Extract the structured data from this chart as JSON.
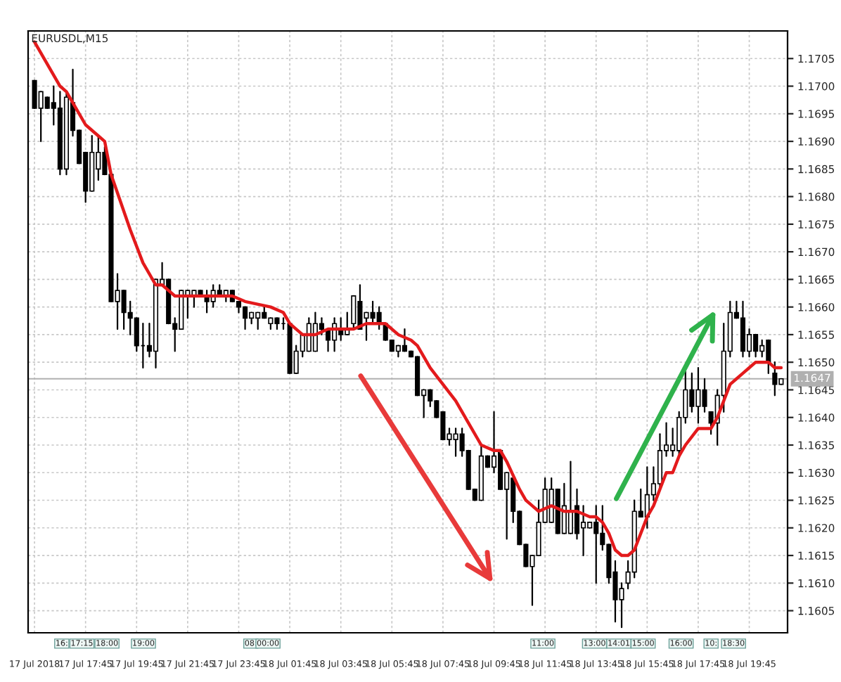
{
  "chart_data": {
    "type": "candlestick",
    "title": "EURUSDL,M15",
    "x": [
      "2018-07-17T15:45",
      "2018-07-17T16:00",
      "2018-07-17T16:15",
      "2018-07-17T16:30",
      "2018-07-17T16:45",
      "2018-07-17T17:00",
      "2018-07-17T17:15",
      "2018-07-17T17:30",
      "2018-07-17T17:45",
      "2018-07-17T18:00",
      "2018-07-17T18:15",
      "2018-07-17T18:30",
      "2018-07-17T18:45",
      "2018-07-17T19:00",
      "2018-07-17T19:15",
      "2018-07-17T19:30",
      "2018-07-17T19:45",
      "2018-07-17T20:00",
      "2018-07-17T20:15",
      "2018-07-17T20:30",
      "2018-07-17T20:45",
      "2018-07-17T21:00",
      "2018-07-17T21:15",
      "2018-07-17T21:30",
      "2018-07-17T21:45",
      "2018-07-17T22:00",
      "2018-07-17T22:15",
      "2018-07-17T22:30",
      "2018-07-17T22:45",
      "2018-07-17T23:00",
      "2018-07-17T23:15",
      "2018-07-17T23:30",
      "2018-07-17T23:45",
      "2018-07-18T00:00",
      "2018-07-18T00:15",
      "2018-07-18T00:30",
      "2018-07-18T00:45",
      "2018-07-18T01:00",
      "2018-07-18T01:15",
      "2018-07-18T01:30",
      "2018-07-18T01:45",
      "2018-07-18T02:00",
      "2018-07-18T02:15",
      "2018-07-18T02:30",
      "2018-07-18T02:45",
      "2018-07-18T03:00",
      "2018-07-18T03:15",
      "2018-07-18T03:30",
      "2018-07-18T03:45",
      "2018-07-18T04:00",
      "2018-07-18T04:15",
      "2018-07-18T04:30",
      "2018-07-18T04:45",
      "2018-07-18T05:00",
      "2018-07-18T05:15",
      "2018-07-18T05:30",
      "2018-07-18T05:45",
      "2018-07-18T06:00",
      "2018-07-18T06:15",
      "2018-07-18T06:30",
      "2018-07-18T06:45",
      "2018-07-18T07:00",
      "2018-07-18T07:15",
      "2018-07-18T07:30",
      "2018-07-18T07:45",
      "2018-07-18T08:00",
      "2018-07-18T08:15",
      "2018-07-18T08:30",
      "2018-07-18T08:45",
      "2018-07-18T09:00",
      "2018-07-18T09:15",
      "2018-07-18T09:30",
      "2018-07-18T09:45",
      "2018-07-18T10:00",
      "2018-07-18T10:15",
      "2018-07-18T10:30",
      "2018-07-18T10:45",
      "2018-07-18T11:00",
      "2018-07-18T11:15",
      "2018-07-18T11:30",
      "2018-07-18T11:45",
      "2018-07-18T12:00",
      "2018-07-18T12:15",
      "2018-07-18T12:30",
      "2018-07-18T12:45",
      "2018-07-18T13:00",
      "2018-07-18T13:15",
      "2018-07-18T13:30",
      "2018-07-18T13:45",
      "2018-07-18T14:00",
      "2018-07-18T14:15",
      "2018-07-18T14:30",
      "2018-07-18T14:45",
      "2018-07-18T15:00",
      "2018-07-18T15:15",
      "2018-07-18T15:30",
      "2018-07-18T15:45",
      "2018-07-18T16:00",
      "2018-07-18T16:15",
      "2018-07-18T16:30",
      "2018-07-18T16:45",
      "2018-07-18T17:00",
      "2018-07-18T17:15",
      "2018-07-18T17:30",
      "2018-07-18T17:45",
      "2018-07-18T18:00",
      "2018-07-18T18:15",
      "2018-07-18T18:30",
      "2018-07-18T18:45",
      "2018-07-18T19:00",
      "2018-07-18T19:15",
      "2018-07-18T19:30",
      "2018-07-18T19:45",
      "2018-07-18T20:00",
      "2018-07-18T20:15",
      "2018-07-18T20:30",
      "2018-07-18T20:45",
      "2018-07-18T21:00"
    ],
    "ohlc": [
      [
        1.1701,
        1.1701,
        1.1696,
        1.1696
      ],
      [
        1.1696,
        1.1699,
        1.169,
        1.1699
      ],
      [
        1.1698,
        1.1698,
        1.1696,
        1.1696
      ],
      [
        1.1697,
        1.17,
        1.1693,
        1.1696
      ],
      [
        1.1696,
        1.1699,
        1.1684,
        1.1685
      ],
      [
        1.1685,
        1.1699,
        1.1684,
        1.1698
      ],
      [
        1.1697,
        1.1703,
        1.1691,
        1.1692
      ],
      [
        1.1692,
        1.1692,
        1.1686,
        1.1686
      ],
      [
        1.1688,
        1.1688,
        1.1679,
        1.1681
      ],
      [
        1.1681,
        1.1691,
        1.1681,
        1.1688
      ],
      [
        1.1685,
        1.1691,
        1.1683,
        1.1688
      ],
      [
        1.1688,
        1.1689,
        1.1684,
        1.1684
      ],
      [
        1.1684,
        1.1684,
        1.1661,
        1.1661
      ],
      [
        1.1661,
        1.1666,
        1.1656,
        1.1663
      ],
      [
        1.1663,
        1.1663,
        1.1656,
        1.1659
      ],
      [
        1.1659,
        1.1661,
        1.1655,
        1.1658
      ],
      [
        1.1658,
        1.1658,
        1.1652,
        1.1653
      ],
      [
        1.1653,
        1.1657,
        1.1649,
        1.1653
      ],
      [
        1.1653,
        1.1657,
        1.1651,
        1.1652
      ],
      [
        1.1652,
        1.1665,
        1.1649,
        1.1665
      ],
      [
        1.1664,
        1.1668,
        1.1664,
        1.1665
      ],
      [
        1.1665,
        1.1665,
        1.1657,
        1.1657
      ],
      [
        1.1657,
        1.1658,
        1.1652,
        1.1656
      ],
      [
        1.1656,
        1.1663,
        1.1656,
        1.1663
      ],
      [
        1.1662,
        1.1663,
        1.1658,
        1.1663
      ],
      [
        1.1662,
        1.1663,
        1.166,
        1.1663
      ],
      [
        1.1663,
        1.1663,
        1.1662,
        1.1662
      ],
      [
        1.1662,
        1.1663,
        1.1659,
        1.1661
      ],
      [
        1.1661,
        1.1664,
        1.166,
        1.1663
      ],
      [
        1.1663,
        1.1664,
        1.1662,
        1.1662
      ],
      [
        1.1662,
        1.1663,
        1.1661,
        1.1663
      ],
      [
        1.1663,
        1.1663,
        1.1661,
        1.1661
      ],
      [
        1.1661,
        1.1661,
        1.1659,
        1.166
      ],
      [
        1.166,
        1.166,
        1.1656,
        1.1658
      ],
      [
        1.1658,
        1.1659,
        1.1657,
        1.1659
      ],
      [
        1.1658,
        1.1659,
        1.1656,
        1.1659
      ],
      [
        1.1659,
        1.166,
        1.1658,
        1.1658
      ],
      [
        1.1657,
        1.1658,
        1.1656,
        1.1658
      ],
      [
        1.1658,
        1.1658,
        1.1656,
        1.1657
      ],
      [
        1.1657,
        1.1658,
        1.1656,
        1.1657
      ],
      [
        1.1657,
        1.1657,
        1.1648,
        1.1648
      ],
      [
        1.1648,
        1.1653,
        1.1648,
        1.1652
      ],
      [
        1.1652,
        1.1655,
        1.1651,
        1.1655
      ],
      [
        1.1652,
        1.1658,
        1.1652,
        1.1657
      ],
      [
        1.1652,
        1.1659,
        1.1652,
        1.1657
      ],
      [
        1.1657,
        1.1658,
        1.1655,
        1.1656
      ],
      [
        1.1656,
        1.1656,
        1.1652,
        1.1654
      ],
      [
        1.1654,
        1.1658,
        1.1652,
        1.1657
      ],
      [
        1.1656,
        1.1658,
        1.1654,
        1.1655
      ],
      [
        1.1655,
        1.1659,
        1.1655,
        1.1656
      ],
      [
        1.1657,
        1.1662,
        1.1656,
        1.1662
      ],
      [
        1.1661,
        1.1664,
        1.1656,
        1.1656
      ],
      [
        1.1658,
        1.1659,
        1.1654,
        1.1659
      ],
      [
        1.1659,
        1.1661,
        1.1657,
        1.1658
      ],
      [
        1.1659,
        1.166,
        1.1656,
        1.1657
      ],
      [
        1.1657,
        1.1657,
        1.1654,
        1.1654
      ],
      [
        1.1654,
        1.1654,
        1.1652,
        1.1652
      ],
      [
        1.1652,
        1.1653,
        1.1651,
        1.1653
      ],
      [
        1.1653,
        1.1656,
        1.1652,
        1.1652
      ],
      [
        1.1652,
        1.1652,
        1.1651,
        1.1651
      ],
      [
        1.1651,
        1.1651,
        1.1644,
        1.1644
      ],
      [
        1.1644,
        1.1645,
        1.164,
        1.1645
      ],
      [
        1.1645,
        1.1645,
        1.1642,
        1.1643
      ],
      [
        1.1643,
        1.1643,
        1.164,
        1.164
      ],
      [
        1.1641,
        1.1641,
        1.1636,
        1.1636
      ],
      [
        1.1636,
        1.1638,
        1.1635,
        1.1637
      ],
      [
        1.1636,
        1.1638,
        1.1633,
        1.1637
      ],
      [
        1.1637,
        1.1638,
        1.1633,
        1.1634
      ],
      [
        1.1634,
        1.1634,
        1.1627,
        1.1627
      ],
      [
        1.1627,
        1.1627,
        1.1625,
        1.1625
      ],
      [
        1.1625,
        1.1635,
        1.1625,
        1.1633
      ],
      [
        1.1633,
        1.1633,
        1.1631,
        1.1631
      ],
      [
        1.1631,
        1.1641,
        1.163,
        1.1633
      ],
      [
        1.1634,
        1.1634,
        1.1627,
        1.1627
      ],
      [
        1.1627,
        1.163,
        1.1618,
        1.163
      ],
      [
        1.1629,
        1.1629,
        1.1621,
        1.1623
      ],
      [
        1.1623,
        1.1623,
        1.1617,
        1.1617
      ],
      [
        1.1617,
        1.1617,
        1.1613,
        1.1613
      ],
      [
        1.1613,
        1.1615,
        1.1606,
        1.1615
      ],
      [
        1.1615,
        1.1625,
        1.1615,
        1.1621
      ],
      [
        1.1621,
        1.1629,
        1.1621,
        1.1627
      ],
      [
        1.1621,
        1.1629,
        1.1621,
        1.1627
      ],
      [
        1.1627,
        1.1627,
        1.1619,
        1.1619
      ],
      [
        1.1619,
        1.1628,
        1.1619,
        1.1624
      ],
      [
        1.1619,
        1.1632,
        1.1619,
        1.1623
      ],
      [
        1.1624,
        1.1627,
        1.1618,
        1.1619
      ],
      [
        1.162,
        1.1624,
        1.1615,
        1.1621
      ],
      [
        1.162,
        1.1621,
        1.162,
        1.1621
      ],
      [
        1.1621,
        1.1624,
        1.161,
        1.1619
      ],
      [
        1.1619,
        1.1624,
        1.1616,
        1.1617
      ],
      [
        1.1617,
        1.1617,
        1.161,
        1.1611
      ],
      [
        1.1612,
        1.1614,
        1.1603,
        1.1607
      ],
      [
        1.1607,
        1.161,
        1.1602,
        1.1609
      ],
      [
        1.161,
        1.1614,
        1.1609,
        1.1612
      ],
      [
        1.1612,
        1.1625,
        1.1611,
        1.1623
      ],
      [
        1.1623,
        1.1627,
        1.1622,
        1.1622
      ],
      [
        1.1622,
        1.1631,
        1.162,
        1.1626
      ],
      [
        1.1626,
        1.1631,
        1.1625,
        1.1628
      ],
      [
        1.1628,
        1.1637,
        1.1627,
        1.1634
      ],
      [
        1.1634,
        1.1639,
        1.1633,
        1.1635
      ],
      [
        1.1634,
        1.1638,
        1.1633,
        1.1635
      ],
      [
        1.1634,
        1.1641,
        1.1633,
        1.164
      ],
      [
        1.164,
        1.1649,
        1.1639,
        1.1645
      ],
      [
        1.1645,
        1.1648,
        1.1641,
        1.1642
      ],
      [
        1.1642,
        1.1649,
        1.1639,
        1.1645
      ],
      [
        1.1645,
        1.1647,
        1.1641,
        1.1642
      ],
      [
        1.1641,
        1.1641,
        1.1637,
        1.1639
      ],
      [
        1.1639,
        1.1645,
        1.1635,
        1.1644
      ],
      [
        1.1644,
        1.1657,
        1.1641,
        1.1652
      ],
      [
        1.1652,
        1.1661,
        1.1651,
        1.1659
      ],
      [
        1.1659,
        1.1661,
        1.1658,
        1.1658
      ],
      [
        1.1658,
        1.1661,
        1.1651,
        1.1652
      ],
      [
        1.1652,
        1.1656,
        1.1651,
        1.1655
      ],
      [
        1.1655,
        1.1655,
        1.1651,
        1.1652
      ],
      [
        1.1652,
        1.1654,
        1.1651,
        1.1653
      ],
      [
        1.1654,
        1.1654,
        1.1648,
        1.165
      ],
      [
        1.1648,
        1.165,
        1.1644,
        1.1646
      ],
      [
        1.1646,
        1.1647,
        1.1646,
        1.1647
      ]
    ],
    "series": [
      {
        "type": "line",
        "color": "#e31a1c",
        "x": [
          "2018-07-17T15:45",
          "2018-07-17T16:45",
          "2018-07-17T17:00",
          "2018-07-17T17:15",
          "2018-07-17T17:45",
          "2018-07-17T18:15",
          "2018-07-17T18:30",
          "2018-07-17T18:45",
          "2018-07-17T19:30",
          "2018-07-17T20:00",
          "2018-07-17T20:30",
          "2018-07-17T20:45",
          "2018-07-17T21:00",
          "2018-07-17T21:15",
          "2018-07-17T21:30",
          "2018-07-17T23:00",
          "2018-07-17T23:30",
          "2018-07-18T00:00",
          "2018-07-18T01:00",
          "2018-07-18T01:30",
          "2018-07-18T01:45",
          "2018-07-18T02:00",
          "2018-07-18T02:15",
          "2018-07-18T02:45",
          "2018-07-18T03:15",
          "2018-07-18T03:45",
          "2018-07-18T04:15",
          "2018-07-18T04:45",
          "2018-07-18T05:15",
          "2018-07-18T05:30",
          "2018-07-18T06:00",
          "2018-07-18T06:30",
          "2018-07-18T06:45",
          "2018-07-18T07:15",
          "2018-07-18T07:45",
          "2018-07-18T08:15",
          "2018-07-18T08:45",
          "2018-07-18T09:15",
          "2018-07-18T09:45",
          "2018-07-18T10:00",
          "2018-07-18T10:15",
          "2018-07-18T10:45",
          "2018-07-18T11:00",
          "2018-07-18T11:15",
          "2018-07-18T11:30",
          "2018-07-18T12:00",
          "2018-07-18T12:30",
          "2018-07-18T13:00",
          "2018-07-18T13:30",
          "2018-07-18T13:45",
          "2018-07-18T14:00",
          "2018-07-18T14:15",
          "2018-07-18T14:30",
          "2018-07-18T14:45",
          "2018-07-18T15:00",
          "2018-07-18T15:15",
          "2018-07-18T15:30",
          "2018-07-18T15:45",
          "2018-07-18T16:00",
          "2018-07-18T16:30",
          "2018-07-18T16:45",
          "2018-07-18T17:00",
          "2018-07-18T17:15",
          "2018-07-18T17:45",
          "2018-07-18T18:00",
          "2018-07-18T18:15",
          "2018-07-18T18:30",
          "2018-07-18T18:45",
          "2018-07-18T19:00",
          "2018-07-18T19:15",
          "2018-07-18T19:30",
          "2018-07-18T19:45",
          "2018-07-18T20:00",
          "2018-07-18T20:15",
          "2018-07-18T20:30",
          "2018-07-18T20:45",
          "2018-07-18T21:00"
        ],
        "values": [
          1.1708,
          1.17,
          1.1699,
          1.1697,
          1.1693,
          1.1691,
          1.169,
          1.1684,
          1.1674,
          1.1668,
          1.1664,
          1.1664,
          1.1663,
          1.1662,
          1.1662,
          1.1662,
          1.1662,
          1.1661,
          1.166,
          1.1659,
          1.1657,
          1.1656,
          1.1655,
          1.1655,
          1.1656,
          1.1656,
          1.1656,
          1.1657,
          1.1657,
          1.1657,
          1.1655,
          1.1654,
          1.1653,
          1.1649,
          1.1646,
          1.1643,
          1.1639,
          1.1635,
          1.1634,
          1.1634,
          1.1632,
          1.1627,
          1.1625,
          1.1624,
          1.1623,
          1.1624,
          1.1623,
          1.1623,
          1.1622,
          1.1622,
          1.1621,
          1.1619,
          1.1616,
          1.1615,
          1.1615,
          1.1616,
          1.1619,
          1.1622,
          1.1624,
          1.163,
          1.163,
          1.1633,
          1.1635,
          1.1638,
          1.1638,
          1.1638,
          1.164,
          1.1643,
          1.1646,
          1.1647,
          1.1648,
          1.1649,
          1.165,
          1.165,
          1.165,
          1.1649,
          1.1649
        ]
      }
    ],
    "xlim": [
      "2018-07-17T15:30",
      "2018-07-18T21:15"
    ],
    "xticks": [
      {
        "value": "2018-07-17T15:45",
        "label": "17 Jul 2018"
      },
      {
        "value": "2018-07-17T17:45",
        "label": "17 Jul 17:45"
      },
      {
        "value": "2018-07-17T19:45",
        "label": "17 Jul 19:45"
      },
      {
        "value": "2018-07-17T21:45",
        "label": "17 Jul 21:45"
      },
      {
        "value": "2018-07-17T23:45",
        "label": "17 Jul 23:45"
      },
      {
        "value": "2018-07-18T01:45",
        "label": "18 Jul 01:45"
      },
      {
        "value": "2018-07-18T03:45",
        "label": "18 Jul 03:45"
      },
      {
        "value": "2018-07-18T05:45",
        "label": "18 Jul 05:45"
      },
      {
        "value": "2018-07-18T07:45",
        "label": "18 Jul 07:45"
      },
      {
        "value": "2018-07-18T09:45",
        "label": "18 Jul 09:45"
      },
      {
        "value": "2018-07-18T11:45",
        "label": "18 Jul 11:45"
      },
      {
        "value": "2018-07-18T13:45",
        "label": "18 Jul 13:45"
      },
      {
        "value": "2018-07-18T15:45",
        "label": "18 Jul 15:45"
      },
      {
        "value": "2018-07-18T17:45",
        "label": "18 Jul 17:45"
      },
      {
        "value": "2018-07-18T19:45",
        "label": "18 Jul 19:45"
      }
    ],
    "ylim": [
      1.1601,
      1.171
    ],
    "yticks": [
      1.1605,
      {
        "value": 1.161,
        "label": "1.1610"
      },
      1.1615,
      {
        "value": 1.162,
        "label": "1.1620"
      },
      1.1625,
      {
        "value": 1.163,
        "label": "1.1630"
      },
      1.1635,
      {
        "value": 1.164,
        "label": "1.1640"
      },
      1.1645,
      {
        "value": 1.165,
        "label": "1.1650"
      },
      1.1655,
      {
        "value": 1.166,
        "label": "1.1660"
      },
      1.1665,
      {
        "value": 1.167,
        "label": "1.1670"
      },
      1.1675,
      {
        "value": 1.168,
        "label": "1.1680"
      },
      1.1685,
      {
        "value": 1.169,
        "label": "1.1690"
      },
      1.1695,
      {
        "value": 1.17,
        "label": "1.1700"
      },
      1.1705
    ],
    "grid": true,
    "ref_lines": [
      {
        "axis": "y",
        "value": 1.1647,
        "label": "1.1647",
        "color": "#b0b0b0"
      }
    ],
    "annotations": [
      "16:",
      "17:15",
      "18:00",
      "19:00",
      "08:",
      "00:00",
      "11:00",
      "13:00",
      "14:01",
      "15:00",
      "16:00",
      "10:",
      "18:30"
    ]
  }
}
